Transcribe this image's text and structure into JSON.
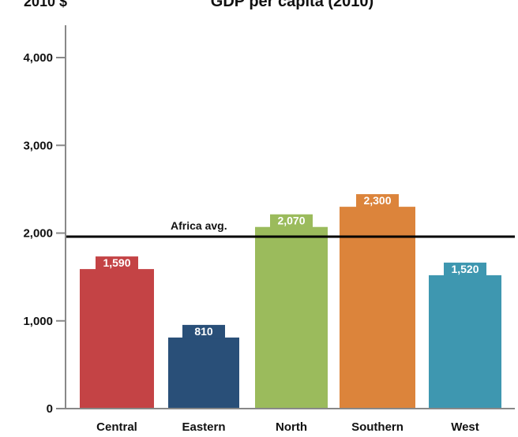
{
  "chart_data": {
    "type": "bar",
    "title": "GDP per capita (2010)",
    "ylabel": "2010 $",
    "xlabel": "",
    "categories": [
      "Central",
      "Eastern",
      "North",
      "Southern",
      "West"
    ],
    "values": [
      1590,
      810,
      2070,
      2300,
      1520
    ],
    "value_labels": [
      "1,590",
      "810",
      "2,070",
      "2,300",
      "1,520"
    ],
    "colors": [
      "#c44345",
      "#294f78",
      "#9bbb5c",
      "#dc843b",
      "#3e97b0"
    ],
    "ylim": [
      0,
      4000
    ],
    "yticks": [
      0,
      1000,
      2000,
      3000,
      4000
    ],
    "ytick_labels": [
      "0",
      "1,000",
      "2,000",
      "3,000",
      "4,000"
    ],
    "reference_line": {
      "label": "Africa avg.",
      "value": 1960
    },
    "grid": false,
    "legend": "none"
  }
}
